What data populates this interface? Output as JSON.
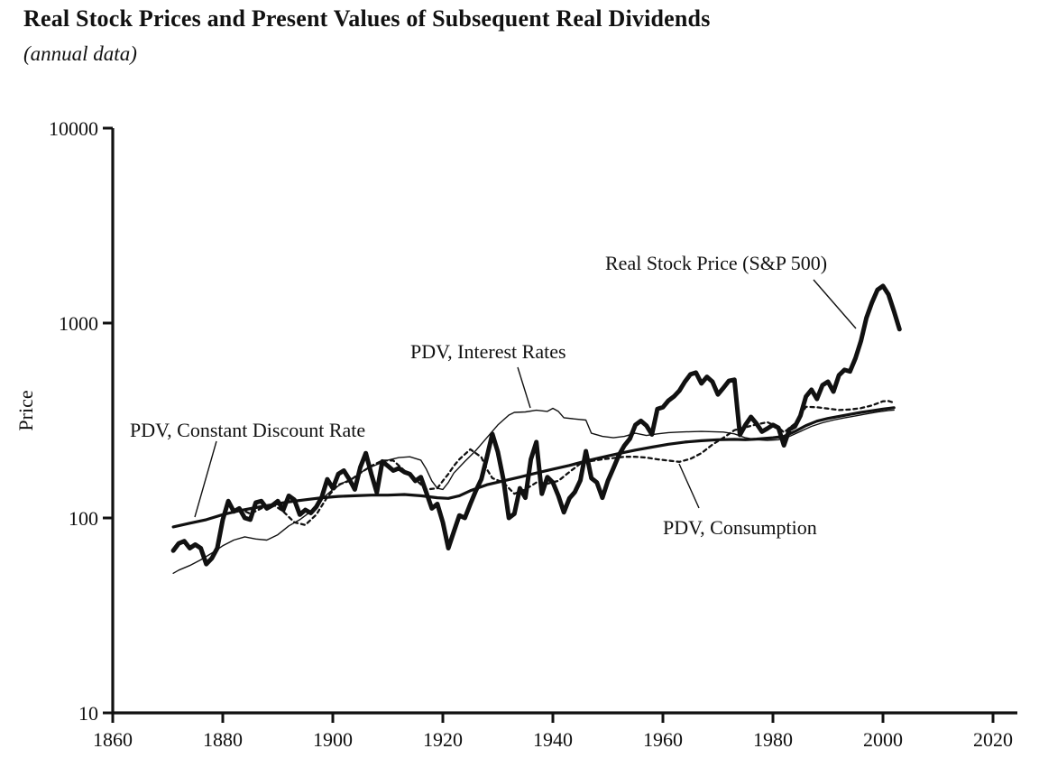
{
  "page": {
    "title": "Real Stock Prices and Present Values of Subsequent Real Dividends",
    "subtitle": "(annual data)"
  },
  "chart_data": {
    "type": "line",
    "title": "Real Stock Prices and Present Values of Subsequent Real Dividends",
    "subtitle": "(annual data)",
    "xlabel": "",
    "ylabel": "Price",
    "grid": false,
    "legend_position": "inline-annotations",
    "ink_color": "#111111",
    "background_color": "#ffffff",
    "x_axis": {
      "min": 1860,
      "max": 2020,
      "ticks": [
        1860,
        1880,
        1900,
        1920,
        1940,
        1960,
        1980,
        2000,
        2020
      ]
    },
    "y_axis": {
      "scale": "log",
      "min": 10,
      "max": 10000,
      "ticks": [
        10,
        100,
        1000,
        10000
      ]
    },
    "annotations": [
      {
        "label": "Real Stock Price (S&P 500)",
        "points_to": "Real Stock Price (S&P 500)"
      },
      {
        "label": "PDV, Interest Rates",
        "points_to": "PDV, Interest Rates"
      },
      {
        "label": "PDV, Constant Discount Rate",
        "points_to": "PDV, Constant Discount Rate"
      },
      {
        "label": "PDV, Consumption",
        "points_to": "PDV, Consumption"
      }
    ],
    "series": [
      {
        "name": "Real Stock Price (S&P 500)",
        "style": "thick-solid",
        "x": [
          1871,
          1872,
          1873,
          1874,
          1875,
          1876,
          1877,
          1878,
          1879,
          1880,
          1881,
          1882,
          1883,
          1884,
          1885,
          1886,
          1887,
          1888,
          1889,
          1890,
          1891,
          1892,
          1893,
          1894,
          1895,
          1896,
          1897,
          1898,
          1899,
          1900,
          1901,
          1902,
          1903,
          1904,
          1905,
          1906,
          1907,
          1908,
          1909,
          1910,
          1911,
          1912,
          1913,
          1914,
          1915,
          1916,
          1917,
          1918,
          1919,
          1920,
          1921,
          1922,
          1923,
          1924,
          1925,
          1926,
          1927,
          1928,
          1929,
          1930,
          1931,
          1932,
          1933,
          1934,
          1935,
          1936,
          1937,
          1938,
          1939,
          1940,
          1941,
          1942,
          1943,
          1944,
          1945,
          1946,
          1947,
          1948,
          1949,
          1950,
          1951,
          1952,
          1953,
          1954,
          1955,
          1956,
          1957,
          1958,
          1959,
          1960,
          1961,
          1962,
          1963,
          1964,
          1965,
          1966,
          1967,
          1968,
          1969,
          1970,
          1971,
          1972,
          1973,
          1974,
          1975,
          1976,
          1977,
          1978,
          1979,
          1980,
          1981,
          1982,
          1983,
          1984,
          1985,
          1986,
          1987,
          1988,
          1989,
          1990,
          1991,
          1992,
          1993,
          1994,
          1995,
          1996,
          1997,
          1998,
          1999,
          2000,
          2001,
          2002,
          2003
        ],
        "values": [
          68,
          74,
          76,
          70,
          73,
          70,
          58,
          62,
          70,
          98,
          122,
          108,
          112,
          100,
          98,
          120,
          122,
          112,
          116,
          122,
          110,
          130,
          124,
          104,
          110,
          106,
          114,
          128,
          158,
          142,
          168,
          175,
          158,
          140,
          182,
          215,
          168,
          135,
          195,
          185,
          175,
          180,
          172,
          168,
          155,
          162,
          135,
          112,
          118,
          95,
          70,
          85,
          103,
          100,
          118,
          138,
          158,
          205,
          270,
          218,
          158,
          100,
          105,
          142,
          127,
          200,
          245,
          133,
          162,
          152,
          130,
          107,
          126,
          136,
          156,
          220,
          160,
          152,
          127,
          155,
          180,
          210,
          235,
          255,
          300,
          315,
          298,
          268,
          362,
          370,
          400,
          420,
          450,
          500,
          545,
          557,
          490,
          530,
          500,
          430,
          465,
          505,
          512,
          267,
          300,
          330,
          305,
          277,
          288,
          300,
          290,
          236,
          285,
          295,
          335,
          420,
          455,
          408,
          480,
          500,
          445,
          540,
          575,
          565,
          660,
          810,
          1065,
          1275,
          1480,
          1550,
          1400,
          1150,
          930
        ]
      },
      {
        "name": "PDV, Constant Discount Rate",
        "style": "medium-solid",
        "x": [
          1871,
          1874,
          1877,
          1880,
          1883,
          1886,
          1889,
          1892,
          1895,
          1898,
          1901,
          1904,
          1907,
          1910,
          1913,
          1916,
          1919,
          1921,
          1923,
          1925,
          1928,
          1931,
          1934,
          1937,
          1940,
          1943,
          1946,
          1949,
          1952,
          1955,
          1958,
          1961,
          1964,
          1967,
          1970,
          1973,
          1975,
          1977,
          1980,
          1982,
          1984,
          1986,
          1988,
          1990,
          1992,
          1994,
          1996,
          1998,
          2000,
          2002
        ],
        "values": [
          90,
          94,
          98,
          104,
          109,
          113,
          117,
          121,
          124,
          127,
          129,
          130,
          131,
          131,
          132,
          130,
          127,
          126,
          130,
          138,
          148,
          155,
          162,
          170,
          178,
          186,
          196,
          205,
          214,
          223,
          231,
          239,
          245,
          249,
          252,
          253,
          252,
          254,
          258,
          262,
          278,
          298,
          314,
          324,
          332,
          340,
          348,
          355,
          362,
          368
        ]
      },
      {
        "name": "PDV, Interest Rates",
        "style": "thin-solid",
        "x": [
          1871,
          1872,
          1874,
          1876,
          1878,
          1880,
          1882,
          1884,
          1886,
          1888,
          1890,
          1892,
          1894,
          1896,
          1898,
          1900,
          1902,
          1904,
          1906,
          1908,
          1910,
          1912,
          1914,
          1916,
          1917,
          1918,
          1919,
          1920,
          1921,
          1922,
          1924,
          1926,
          1928,
          1930,
          1932,
          1933,
          1935,
          1937,
          1939,
          1940,
          1941,
          1942,
          1944,
          1946,
          1947,
          1949,
          1951,
          1953,
          1955,
          1957,
          1959,
          1961,
          1963,
          1965,
          1967,
          1969,
          1971,
          1973,
          1975,
          1977,
          1979,
          1981,
          1983,
          1985,
          1987,
          1989,
          1991,
          1993,
          1995,
          1997,
          1999,
          2001,
          2002
        ],
        "values": [
          52,
          54,
          57,
          61,
          66,
          72,
          77,
          80,
          78,
          77,
          82,
          91,
          98,
          108,
          125,
          140,
          152,
          162,
          178,
          188,
          198,
          204,
          206,
          198,
          178,
          155,
          142,
          140,
          152,
          170,
          195,
          222,
          258,
          300,
          337,
          348,
          350,
          357,
          352,
          365,
          352,
          327,
          322,
          318,
          272,
          262,
          258,
          262,
          272,
          265,
          270,
          274,
          276,
          277,
          278,
          277,
          276,
          270,
          258,
          252,
          250,
          252,
          262,
          278,
          295,
          308,
          318,
          326,
          334,
          342,
          350,
          356,
          358
        ]
      },
      {
        "name": "PDV, Consumption",
        "style": "dashed",
        "x": [
          1883,
          1885,
          1887,
          1889,
          1891,
          1893,
          1895,
          1897,
          1899,
          1901,
          1903,
          1905,
          1907,
          1909,
          1911,
          1913,
          1915,
          1917,
          1919,
          1920,
          1921,
          1922,
          1923,
          1925,
          1927,
          1928,
          1929,
          1931,
          1933,
          1935,
          1937,
          1939,
          1941,
          1943,
          1945,
          1947,
          1949,
          1951,
          1953,
          1955,
          1957,
          1959,
          1961,
          1963,
          1965,
          1967,
          1969,
          1971,
          1973,
          1975,
          1977,
          1979,
          1981,
          1982,
          1984,
          1986,
          1988,
          1990,
          1992,
          1994,
          1996,
          1998,
          2000,
          2001,
          2002
        ],
        "values": [
          112,
          105,
          112,
          118,
          108,
          95,
          92,
          104,
          128,
          148,
          155,
          170,
          185,
          197,
          197,
          175,
          158,
          140,
          142,
          155,
          168,
          185,
          200,
          225,
          205,
          178,
          160,
          152,
          133,
          140,
          152,
          150,
          155,
          172,
          190,
          196,
          200,
          203,
          206,
          206,
          204,
          200,
          197,
          194,
          201,
          215,
          238,
          258,
          282,
          292,
          302,
          310,
          292,
          275,
          305,
          372,
          370,
          364,
          358,
          360,
          366,
          378,
          397,
          398,
          390
        ]
      }
    ]
  }
}
